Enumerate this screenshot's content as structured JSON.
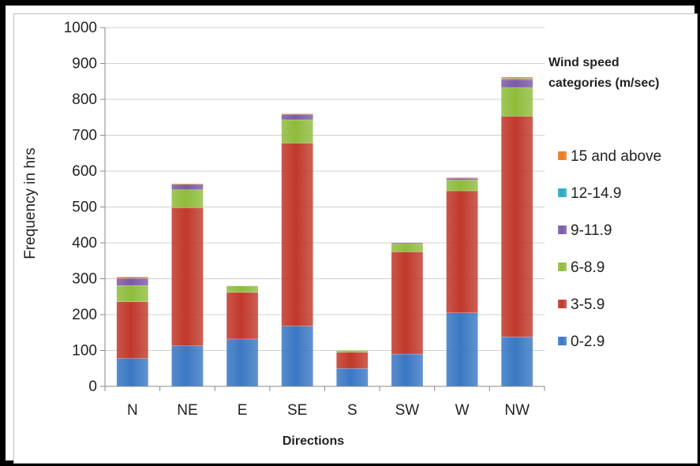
{
  "chart_data": {
    "type": "bar",
    "stacked": true,
    "categories": [
      "N",
      "NE",
      "E",
      "SE",
      "S",
      "SW",
      "W",
      "NW"
    ],
    "xlabel": "Directions",
    "ylabel": "Frequency in hrs",
    "ylim": [
      0,
      1000
    ],
    "yticks": [
      0,
      100,
      200,
      300,
      400,
      500,
      600,
      700,
      800,
      900,
      1000
    ],
    "grid": true,
    "legend": {
      "title": "Wind speed categories (m/sec)",
      "position": "right",
      "order": [
        "15 and above",
        "12-14.9",
        "9-11.9",
        "6-8.9",
        "3-5.9",
        "0-2.9"
      ]
    },
    "series": [
      {
        "name": "0-2.9",
        "color": "#3a78c3",
        "values": [
          78,
          113,
          132,
          168,
          50,
          90,
          205,
          138
        ]
      },
      {
        "name": "3-5.9",
        "color": "#c0392b",
        "values": [
          158,
          385,
          130,
          510,
          45,
          285,
          340,
          615
        ]
      },
      {
        "name": "6-8.9",
        "color": "#8fbc3c",
        "values": [
          45,
          50,
          18,
          65,
          5,
          22,
          30,
          80
        ]
      },
      {
        "name": "9-11.9",
        "color": "#7a5aa6",
        "values": [
          20,
          15,
          0,
          15,
          0,
          3,
          5,
          22
        ]
      },
      {
        "name": "12-14.9",
        "color": "#29a6c2",
        "values": [
          0,
          0,
          0,
          0,
          0,
          0,
          0,
          3
        ]
      },
      {
        "name": "15 and above",
        "color": "#e87722",
        "values": [
          4,
          2,
          0,
          2,
          0,
          0,
          2,
          4
        ]
      }
    ]
  }
}
